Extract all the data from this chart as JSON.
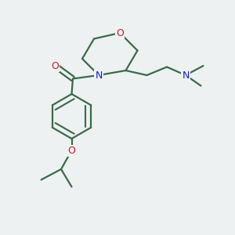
{
  "bg_color": "#edf1f2",
  "bond_color": "#3a6b45",
  "atom_color_N": "#1a1acc",
  "atom_color_O": "#cc1a1a",
  "line_width": 1.6,
  "figsize": [
    3.0,
    3.0
  ],
  "dpi": 100,
  "xlim": [
    0,
    10
  ],
  "ylim": [
    0,
    10
  ]
}
